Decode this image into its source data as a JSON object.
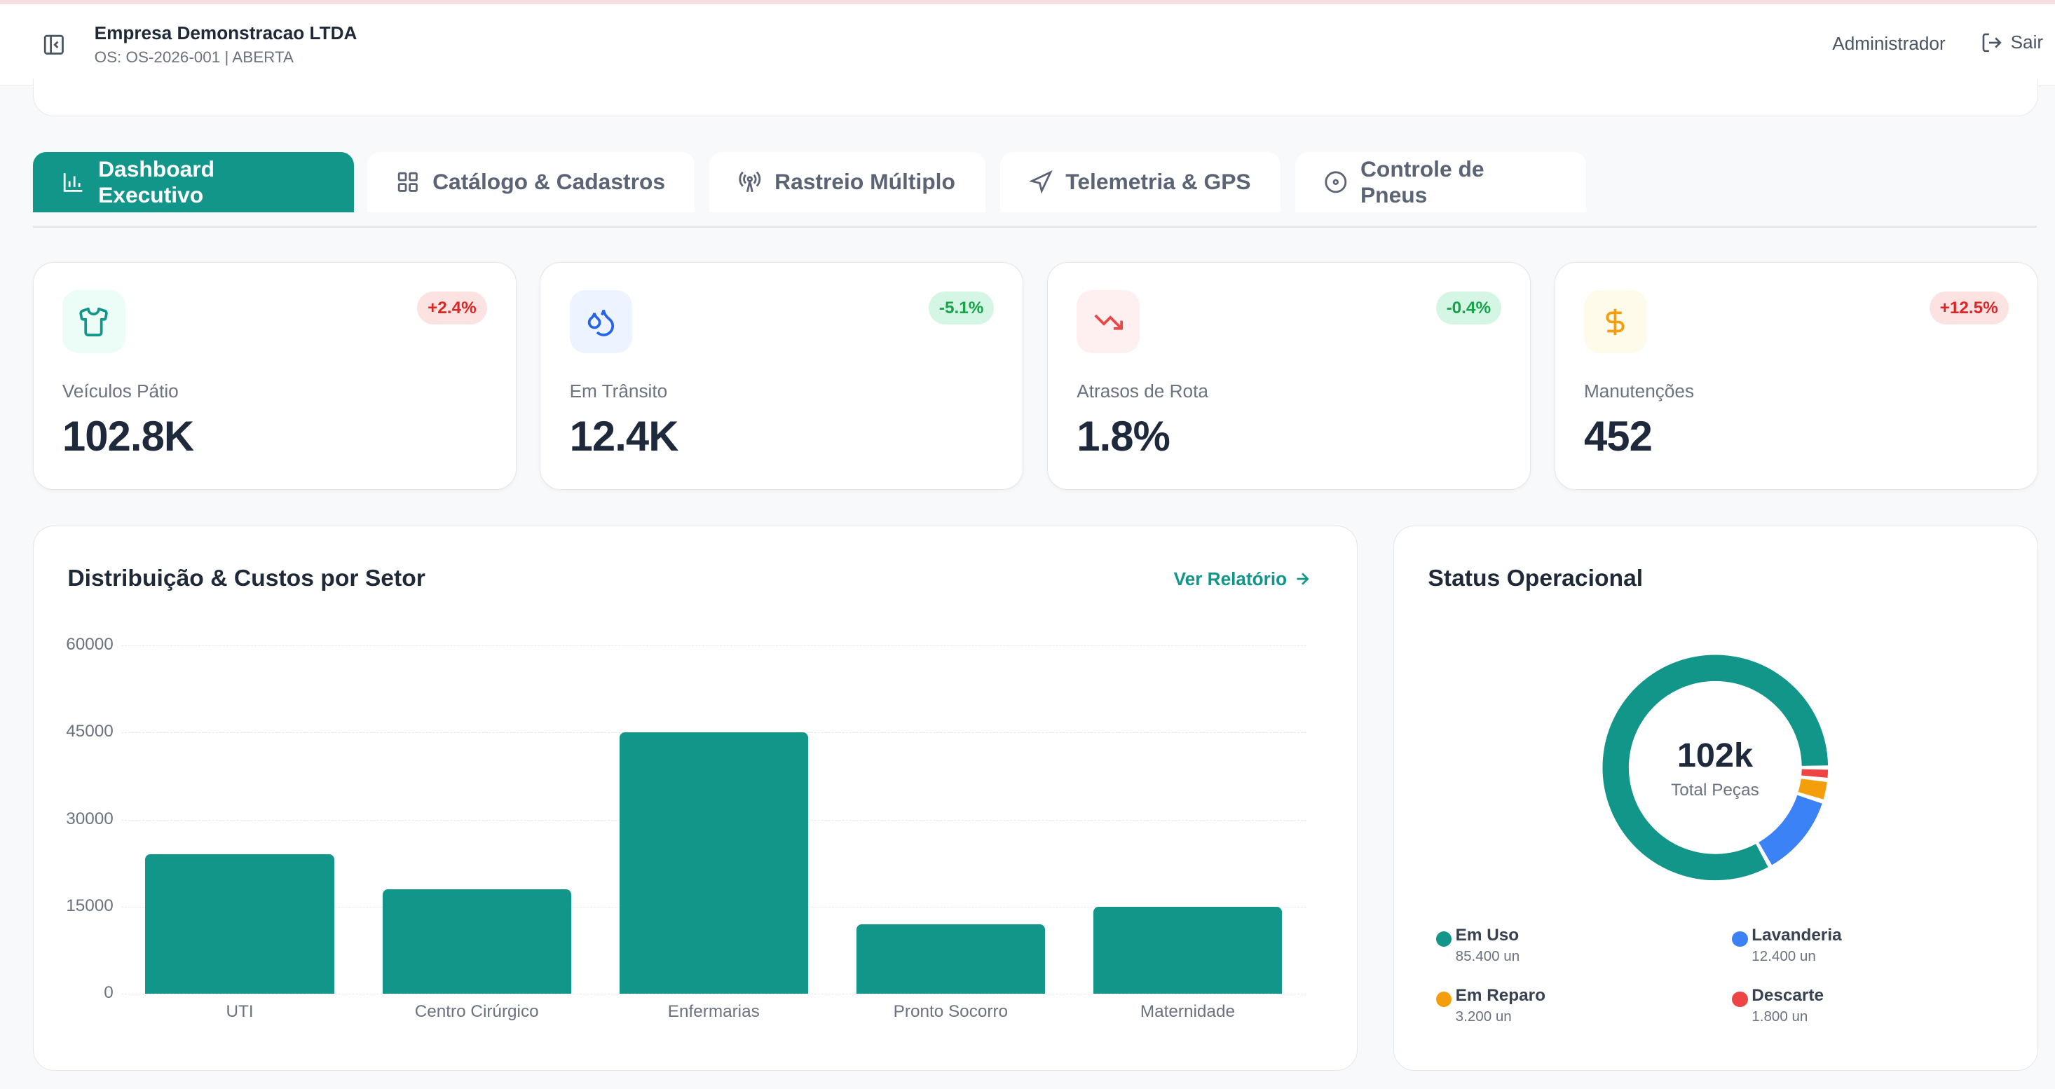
{
  "header": {
    "company": "Empresa Demonstracao LTDA",
    "subtitle": "OS: OS-2026-001 | ABERTA",
    "user": "Administrador",
    "logout": "Sair"
  },
  "tabs": [
    {
      "label": "Dashboard Executivo",
      "icon": "bar-chart-icon",
      "active": true
    },
    {
      "label": "Catálogo & Cadastros",
      "icon": "grid-icon"
    },
    {
      "label": "Rastreio Múltiplo",
      "icon": "radio-tower-icon"
    },
    {
      "label": "Telemetria & GPS",
      "icon": "navigation-icon"
    },
    {
      "label": "Controle de Pneus",
      "icon": "disc-icon"
    }
  ],
  "kpis": [
    {
      "label": "Veículos Pátio",
      "value": "102.8K",
      "change": "+2.4%",
      "icon": "shirt-icon"
    },
    {
      "label": "Em Trânsito",
      "value": "12.4K",
      "change": "-5.1%",
      "icon": "droplets-icon"
    },
    {
      "label": "Atrasos de Rota",
      "value": "1.8%",
      "change": "-0.4%",
      "icon": "trending-down-icon"
    },
    {
      "label": "Manutenções",
      "value": "452",
      "change": "+12.5%",
      "icon": "dollar-icon"
    }
  ],
  "colors": {
    "accent": "#12968a",
    "blue": "#3b82f6",
    "orange": "#f59e0b",
    "red": "#ef4444"
  },
  "chart_data": [
    {
      "type": "bar",
      "title": "Distribuição & Custos por Setor",
      "action": "Ver Relatório",
      "categories": [
        "UTI",
        "Centro Cirúrgico",
        "Enfermarias",
        "Pronto Socorro",
        "Maternidade"
      ],
      "values": [
        24000,
        18000,
        45000,
        12000,
        15000
      ],
      "yticks": [
        "0",
        "15000",
        "30000",
        "45000",
        "60000"
      ],
      "ylim": [
        0,
        60000
      ],
      "grid": true
    },
    {
      "type": "pie",
      "title": "Status Operacional",
      "center_value": "102k",
      "center_label": "Total Peças",
      "slices": [
        {
          "name": "Em Uso",
          "value": 85400,
          "display": "85.400 un",
          "color": "#12968a"
        },
        {
          "name": "Lavanderia",
          "value": 12400,
          "display": "12.400 un",
          "color": "#3b82f6"
        },
        {
          "name": "Em Reparo",
          "value": 3200,
          "display": "3.200 un",
          "color": "#f59e0b"
        },
        {
          "name": "Descarte",
          "value": 1800,
          "display": "1.800 un",
          "color": "#ef4444"
        }
      ]
    }
  ]
}
